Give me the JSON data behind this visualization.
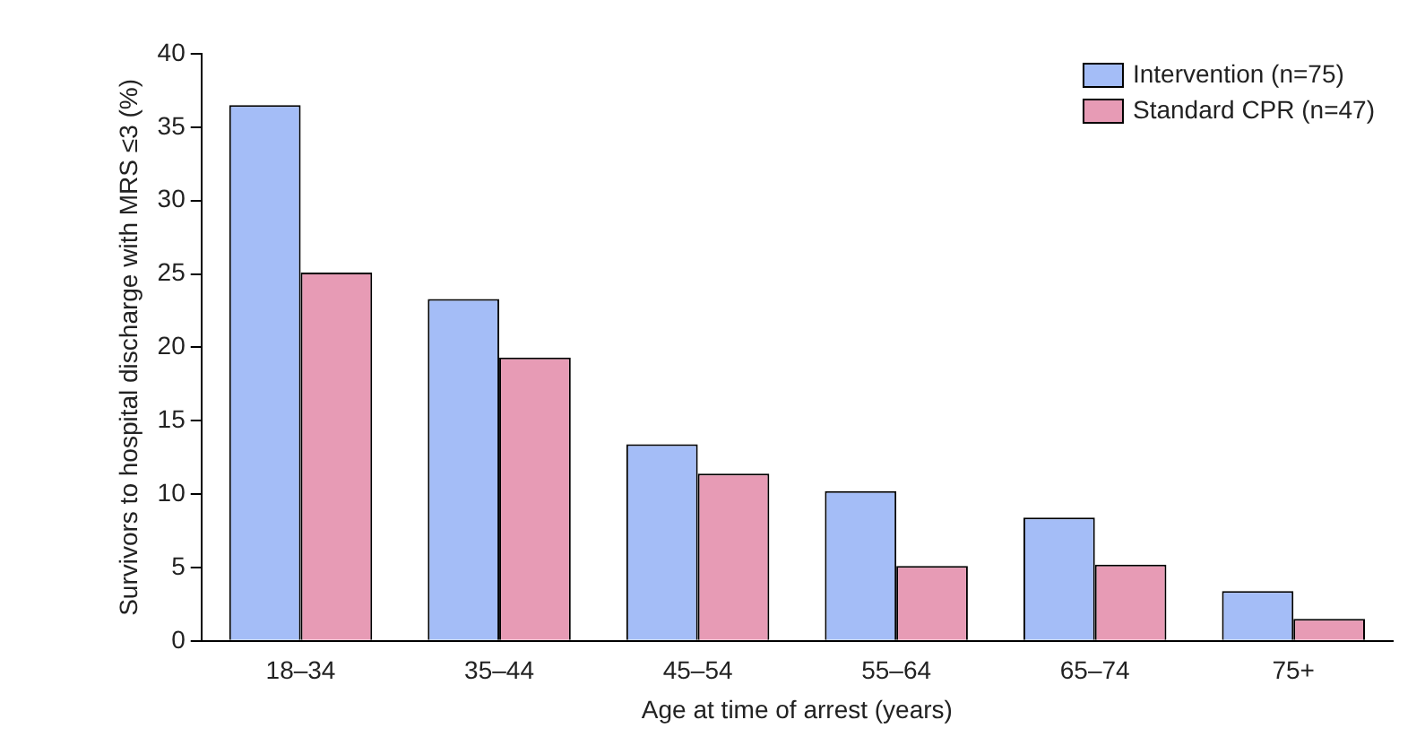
{
  "chart_data": {
    "type": "bar",
    "xlabel": "Age at time of arrest (years)",
    "ylabel": "Survivors to hospital discharge with MRS ≤3 (%)",
    "categories": [
      "18–34",
      "35–44",
      "45–54",
      "55–64",
      "65–74",
      "75+"
    ],
    "series": [
      {
        "name": "Intervention (n=75)",
        "color": "#a4bdf7",
        "values": [
          36.5,
          23.3,
          13.4,
          10.2,
          8.4,
          3.4
        ]
      },
      {
        "name": "Standard CPR (n=47)",
        "color": "#e79bb5",
        "values": [
          25.1,
          19.3,
          11.4,
          5.1,
          5.2,
          1.5
        ]
      }
    ],
    "ylim": [
      0,
      40
    ],
    "yticks": [
      0,
      5,
      10,
      15,
      20,
      25,
      30,
      35,
      40
    ],
    "grid": false,
    "legend": "top right"
  }
}
